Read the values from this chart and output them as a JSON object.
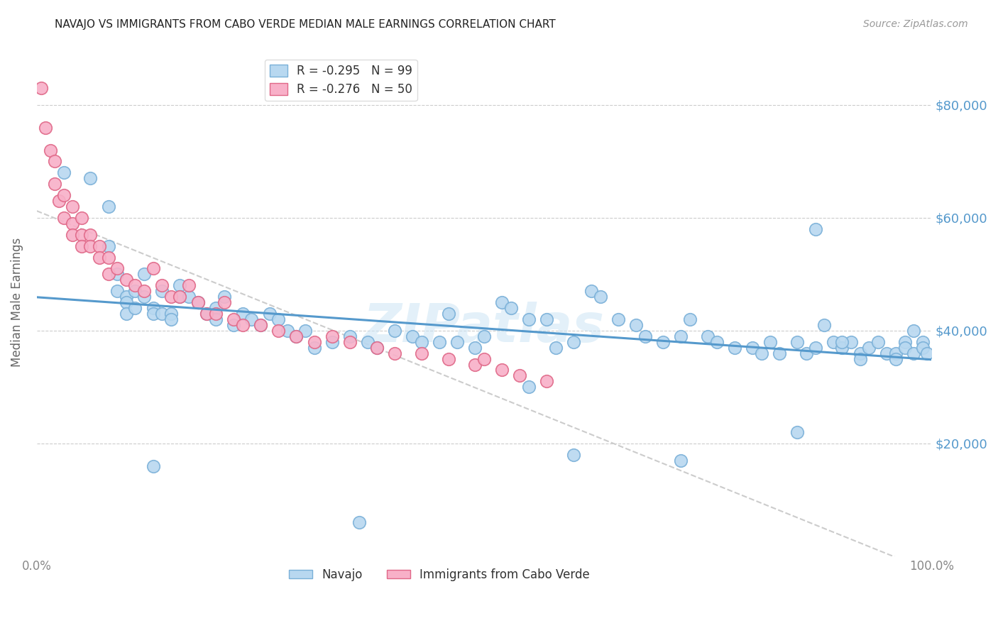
{
  "title": "NAVAJO VS IMMIGRANTS FROM CABO VERDE MEDIAN MALE EARNINGS CORRELATION CHART",
  "source": "Source: ZipAtlas.com",
  "ylabel": "Median Male Earnings",
  "ytick_values": [
    20000,
    40000,
    60000,
    80000
  ],
  "ymin": 0,
  "ymax": 90000,
  "xmin": 0.0,
  "xmax": 1.0,
  "navajo_color": "#b8d8f0",
  "navajo_edge_color": "#7ab0d8",
  "cabo_verde_color": "#f8b0c8",
  "cabo_verde_edge_color": "#e06888",
  "trendline_navajo_color": "#5599cc",
  "trendline_cabo_verde_color": "#dd7799",
  "watermark": "ZIPatlas",
  "navajo_R": "-0.295",
  "navajo_N": "99",
  "cabo_R": "-0.276",
  "cabo_N": "50",
  "navajo_x": [
    0.03,
    0.06,
    0.08,
    0.08,
    0.09,
    0.09,
    0.1,
    0.1,
    0.1,
    0.11,
    0.11,
    0.12,
    0.12,
    0.13,
    0.13,
    0.14,
    0.14,
    0.15,
    0.15,
    0.16,
    0.16,
    0.17,
    0.18,
    0.19,
    0.2,
    0.2,
    0.21,
    0.22,
    0.23,
    0.24,
    0.25,
    0.26,
    0.27,
    0.28,
    0.29,
    0.3,
    0.31,
    0.33,
    0.35,
    0.37,
    0.38,
    0.4,
    0.42,
    0.43,
    0.45,
    0.46,
    0.47,
    0.49,
    0.5,
    0.52,
    0.53,
    0.55,
    0.57,
    0.58,
    0.6,
    0.62,
    0.63,
    0.65,
    0.67,
    0.68,
    0.7,
    0.72,
    0.73,
    0.75,
    0.76,
    0.78,
    0.8,
    0.81,
    0.82,
    0.83,
    0.85,
    0.86,
    0.87,
    0.88,
    0.89,
    0.9,
    0.91,
    0.92,
    0.93,
    0.94,
    0.95,
    0.96,
    0.97,
    0.97,
    0.98,
    0.98,
    0.99,
    0.99,
    0.995,
    0.13,
    0.36,
    0.55,
    0.6,
    0.72,
    0.85,
    0.87,
    0.9,
    0.92,
    0.96
  ],
  "navajo_y": [
    68000,
    67000,
    62000,
    55000,
    50000,
    47000,
    46000,
    45000,
    43000,
    47000,
    44000,
    50000,
    46000,
    44000,
    43000,
    47000,
    43000,
    43000,
    42000,
    48000,
    46000,
    46000,
    45000,
    43000,
    44000,
    42000,
    46000,
    41000,
    43000,
    42000,
    41000,
    43000,
    42000,
    40000,
    39000,
    40000,
    37000,
    38000,
    39000,
    38000,
    37000,
    40000,
    39000,
    38000,
    38000,
    43000,
    38000,
    37000,
    39000,
    45000,
    44000,
    42000,
    42000,
    37000,
    38000,
    47000,
    46000,
    42000,
    41000,
    39000,
    38000,
    39000,
    42000,
    39000,
    38000,
    37000,
    37000,
    36000,
    38000,
    36000,
    38000,
    36000,
    37000,
    41000,
    38000,
    37000,
    38000,
    36000,
    37000,
    38000,
    36000,
    36000,
    38000,
    37000,
    40000,
    36000,
    38000,
    37000,
    36000,
    16000,
    6000,
    30000,
    18000,
    17000,
    22000,
    58000,
    38000,
    35000,
    35000
  ],
  "cabo_x": [
    0.005,
    0.01,
    0.015,
    0.02,
    0.02,
    0.025,
    0.03,
    0.03,
    0.04,
    0.04,
    0.04,
    0.05,
    0.05,
    0.05,
    0.06,
    0.06,
    0.07,
    0.07,
    0.08,
    0.08,
    0.09,
    0.1,
    0.11,
    0.12,
    0.13,
    0.14,
    0.15,
    0.16,
    0.17,
    0.18,
    0.19,
    0.2,
    0.21,
    0.22,
    0.23,
    0.25,
    0.27,
    0.29,
    0.31,
    0.33,
    0.35,
    0.38,
    0.4,
    0.43,
    0.46,
    0.49,
    0.5,
    0.52,
    0.54,
    0.57
  ],
  "cabo_y": [
    83000,
    76000,
    72000,
    70000,
    66000,
    63000,
    64000,
    60000,
    62000,
    59000,
    57000,
    60000,
    57000,
    55000,
    57000,
    55000,
    55000,
    53000,
    53000,
    50000,
    51000,
    49000,
    48000,
    47000,
    51000,
    48000,
    46000,
    46000,
    48000,
    45000,
    43000,
    43000,
    45000,
    42000,
    41000,
    41000,
    40000,
    39000,
    38000,
    39000,
    38000,
    37000,
    36000,
    36000,
    35000,
    34000,
    35000,
    33000,
    32000,
    31000
  ]
}
